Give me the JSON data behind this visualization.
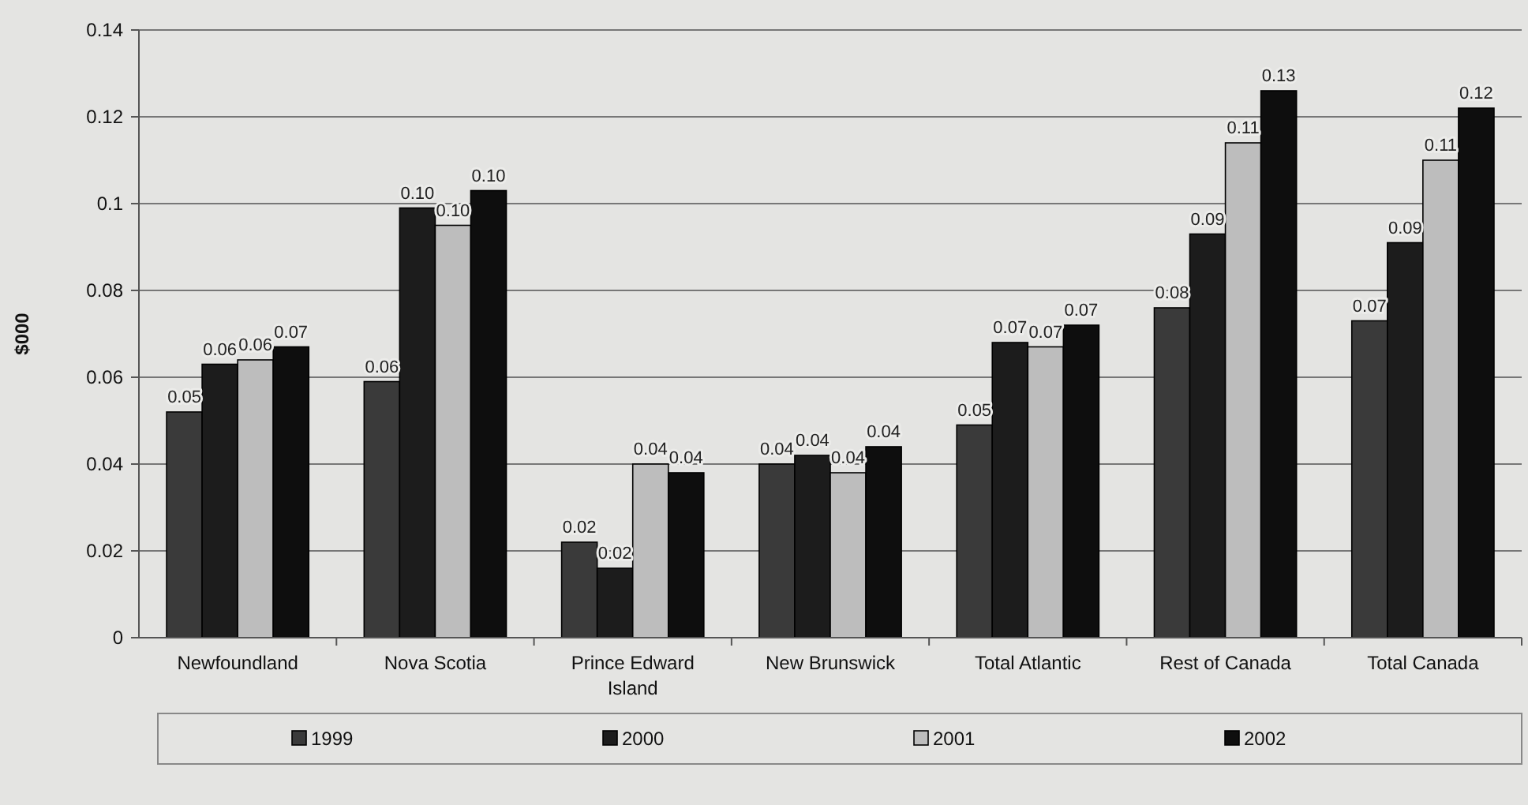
{
  "chart_data": {
    "type": "bar",
    "ylabel": "$000",
    "categories": [
      "Newfoundland",
      "Nova Scotia",
      "Prince Edward Island",
      "New Brunswick",
      "Total Atlantic",
      "Rest of Canada",
      "Total Canada"
    ],
    "series": [
      {
        "name": "1999",
        "color": "#3a3a3a",
        "values": [
          0.052,
          0.059,
          0.022,
          0.04,
          0.049,
          0.076,
          0.073
        ],
        "value_labels": [
          "0.05",
          "0.06",
          "0.02",
          "0.04",
          "0.05",
          "0.08",
          "0.07"
        ]
      },
      {
        "name": "2000",
        "color": "#1c1c1c",
        "values": [
          0.063,
          0.099,
          0.016,
          0.042,
          0.068,
          0.093,
          0.091
        ],
        "value_labels": [
          "0.06",
          "0.10",
          "0.02",
          "0.04",
          "0.07",
          "0.09",
          "0.09"
        ]
      },
      {
        "name": "2001",
        "color": "#bdbdbd",
        "values": [
          0.064,
          0.095,
          0.04,
          0.038,
          0.067,
          0.114,
          0.11
        ],
        "value_labels": [
          "0.06",
          "0.10",
          "0.04",
          "0.04",
          "0.07",
          "0.11",
          "0.11"
        ]
      },
      {
        "name": "2002",
        "color": "#0e0e0e",
        "values": [
          0.067,
          0.103,
          0.038,
          0.044,
          0.072,
          0.126,
          0.122
        ],
        "value_labels": [
          "0.07",
          "0.10",
          "0.04",
          "0.04",
          "0.07",
          "0.13",
          "0.12"
        ]
      }
    ],
    "ylim": [
      0,
      0.14
    ],
    "yticks": [
      0,
      0.02,
      0.04,
      0.06,
      0.08,
      0.1,
      0.12,
      0.14
    ],
    "grid": "y",
    "legend": "bottom"
  }
}
